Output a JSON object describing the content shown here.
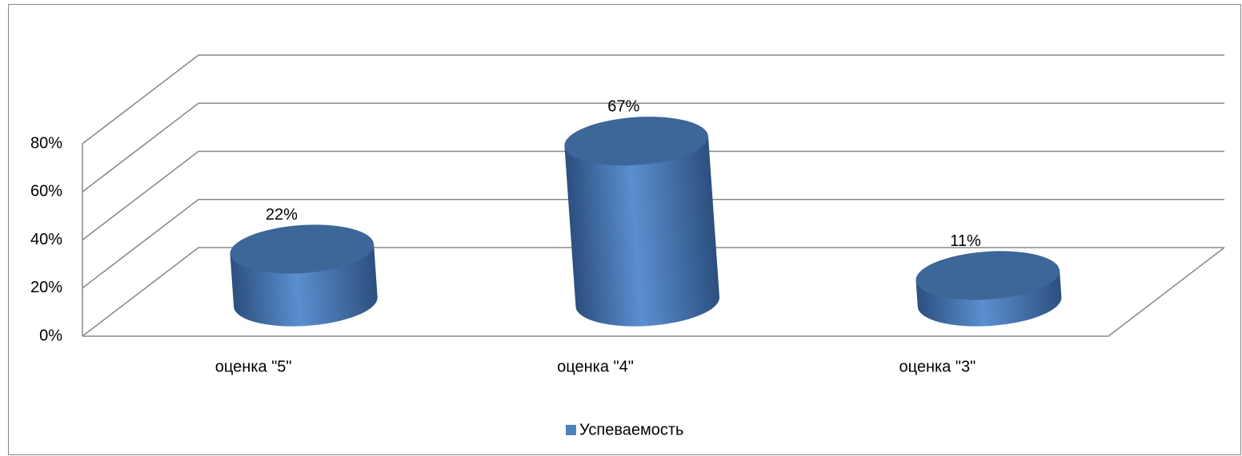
{
  "chart_data": {
    "type": "bar3d",
    "categories": [
      "оценка \"5\"",
      "оценка \"4\"",
      "оценка \"3\""
    ],
    "series": [
      {
        "name": "Успеваемость",
        "color": "#4f81bd",
        "values": [
          22,
          67,
          11
        ],
        "value_labels": [
          "22%",
          "67%",
          "11%"
        ]
      }
    ],
    "ylim": [
      0,
      80
    ],
    "yticks": [
      {
        "value": 0,
        "label": "0%"
      },
      {
        "value": 20,
        "label": "20%"
      },
      {
        "value": 40,
        "label": "40%"
      },
      {
        "value": 60,
        "label": "60%"
      },
      {
        "value": 80,
        "label": "80%"
      }
    ],
    "grid": true,
    "legend": "bottom"
  }
}
